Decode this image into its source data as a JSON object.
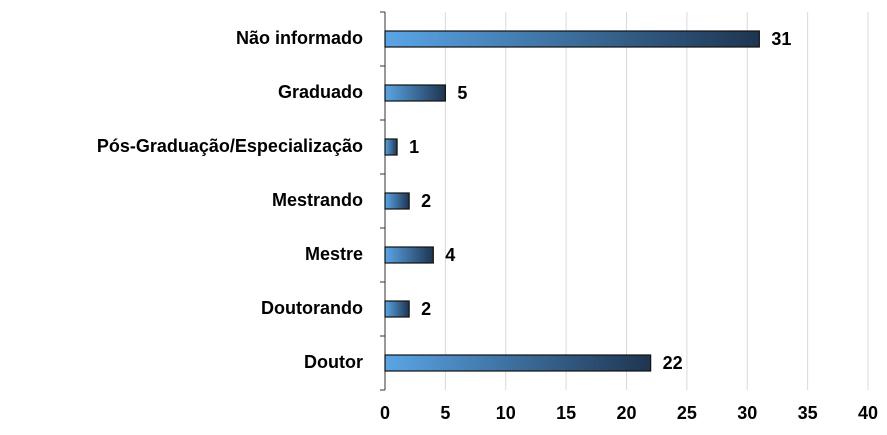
{
  "chart_data": {
    "type": "barh",
    "categories": [
      "Não informado",
      "Graduado",
      "Pós-Graduação/Especialização",
      "Mestrando",
      "Mestre",
      "Doutorando",
      "Doutor"
    ],
    "values": [
      31,
      5,
      1,
      2,
      4,
      2,
      22
    ],
    "gradient": [
      "#5aa5e6",
      "#1e3550"
    ],
    "xlim": [
      0,
      40
    ],
    "xticks": [
      0,
      5,
      10,
      15,
      20,
      25,
      30,
      35,
      40
    ],
    "grid": true
  }
}
